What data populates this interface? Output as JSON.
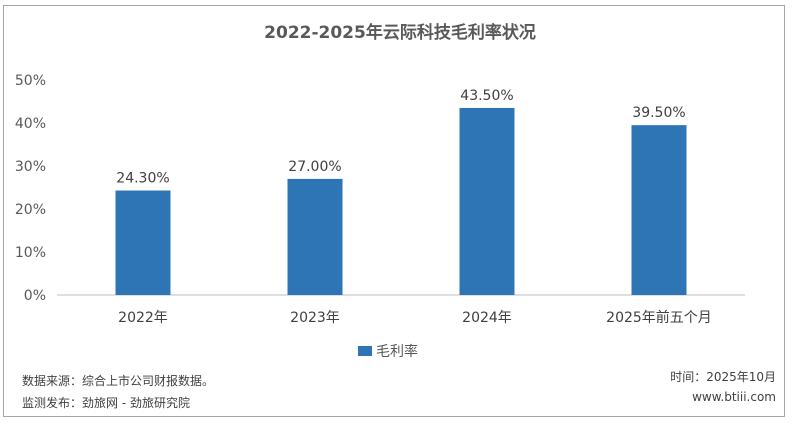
{
  "chart_data": {
    "type": "bar",
    "title": "2022-2025年云际科技毛利率状况",
    "categories": [
      "2022年",
      "2023年",
      "2024年",
      "2025年前五个月"
    ],
    "series": [
      {
        "name": "毛利率",
        "values": [
          24.3,
          27.0,
          43.5,
          39.5
        ]
      }
    ],
    "data_labels": [
      "24.30%",
      "27.00%",
      "43.50%",
      "39.50%"
    ],
    "ylim": [
      0,
      50
    ],
    "yticks": [
      "0%",
      "10%",
      "20%",
      "30%",
      "40%",
      "50%"
    ],
    "grid": false,
    "legend": "bottom",
    "bar_color": "#2e75b6"
  },
  "footer": {
    "source": "数据来源：综合上市公司财报数据。",
    "publisher": "监测发布：劲旅网 - 劲旅研究院",
    "time": "时间：2025年10月",
    "site": "www.btiii.com"
  }
}
